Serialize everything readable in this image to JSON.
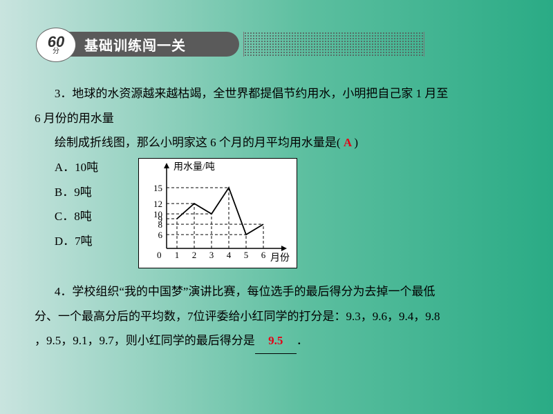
{
  "header": {
    "score_number": "60",
    "score_unit": "分",
    "title": "基础训练闯一关"
  },
  "q3": {
    "line1": "3．地球的水资源越来越枯竭，全世界都提倡节约用水，小明把自己家 1 月至",
    "line2": "6 月份的用水量",
    "line3_pre": "绘制成折线图，那么小明家这 6 个月的月平均用水量是(",
    "answer": " A ",
    "line3_post": ")",
    "choices": {
      "A": "A．10吨",
      "B": "B．9吨",
      "C": "C．8吨",
      "D": "D．7吨"
    }
  },
  "chart": {
    "y_label": "用水量/吨",
    "x_label": "月份",
    "y_ticks": [
      "6",
      "8",
      "9",
      "10",
      "12",
      "15"
    ],
    "x_ticks": [
      "1",
      "2",
      "3",
      "4",
      "5",
      "6"
    ],
    "y_positions": {
      "6": 110,
      "8": 95,
      "9": 87,
      "10": 80,
      "12": 65,
      "15": 42
    },
    "x_positions": {
      "1": 55,
      "2": 80,
      "3": 105,
      "4": 130,
      "5": 155,
      "6": 180
    },
    "origin_label": "0",
    "points": [
      {
        "x": 55,
        "y": 87
      },
      {
        "x": 80,
        "y": 65
      },
      {
        "x": 105,
        "y": 80
      },
      {
        "x": 130,
        "y": 42
      },
      {
        "x": 155,
        "y": 110
      },
      {
        "x": 180,
        "y": 95
      }
    ],
    "line_color": "#000000",
    "dash_color": "#000000",
    "background": "#ffffff"
  },
  "q4": {
    "line1": "4．学校组织“我的中国梦”演讲比赛，每位选手的最后得分为去掉一个最低",
    "line2_a": "分、一个最高分后的平均数，7位评委给小红同学的打分是：9.3，9.6，9.4，9.8",
    "line3_a": "，9.5，9.1，9.7，则小红同学的最后得分是",
    "answer": "9.5",
    "line3_b": "．"
  }
}
